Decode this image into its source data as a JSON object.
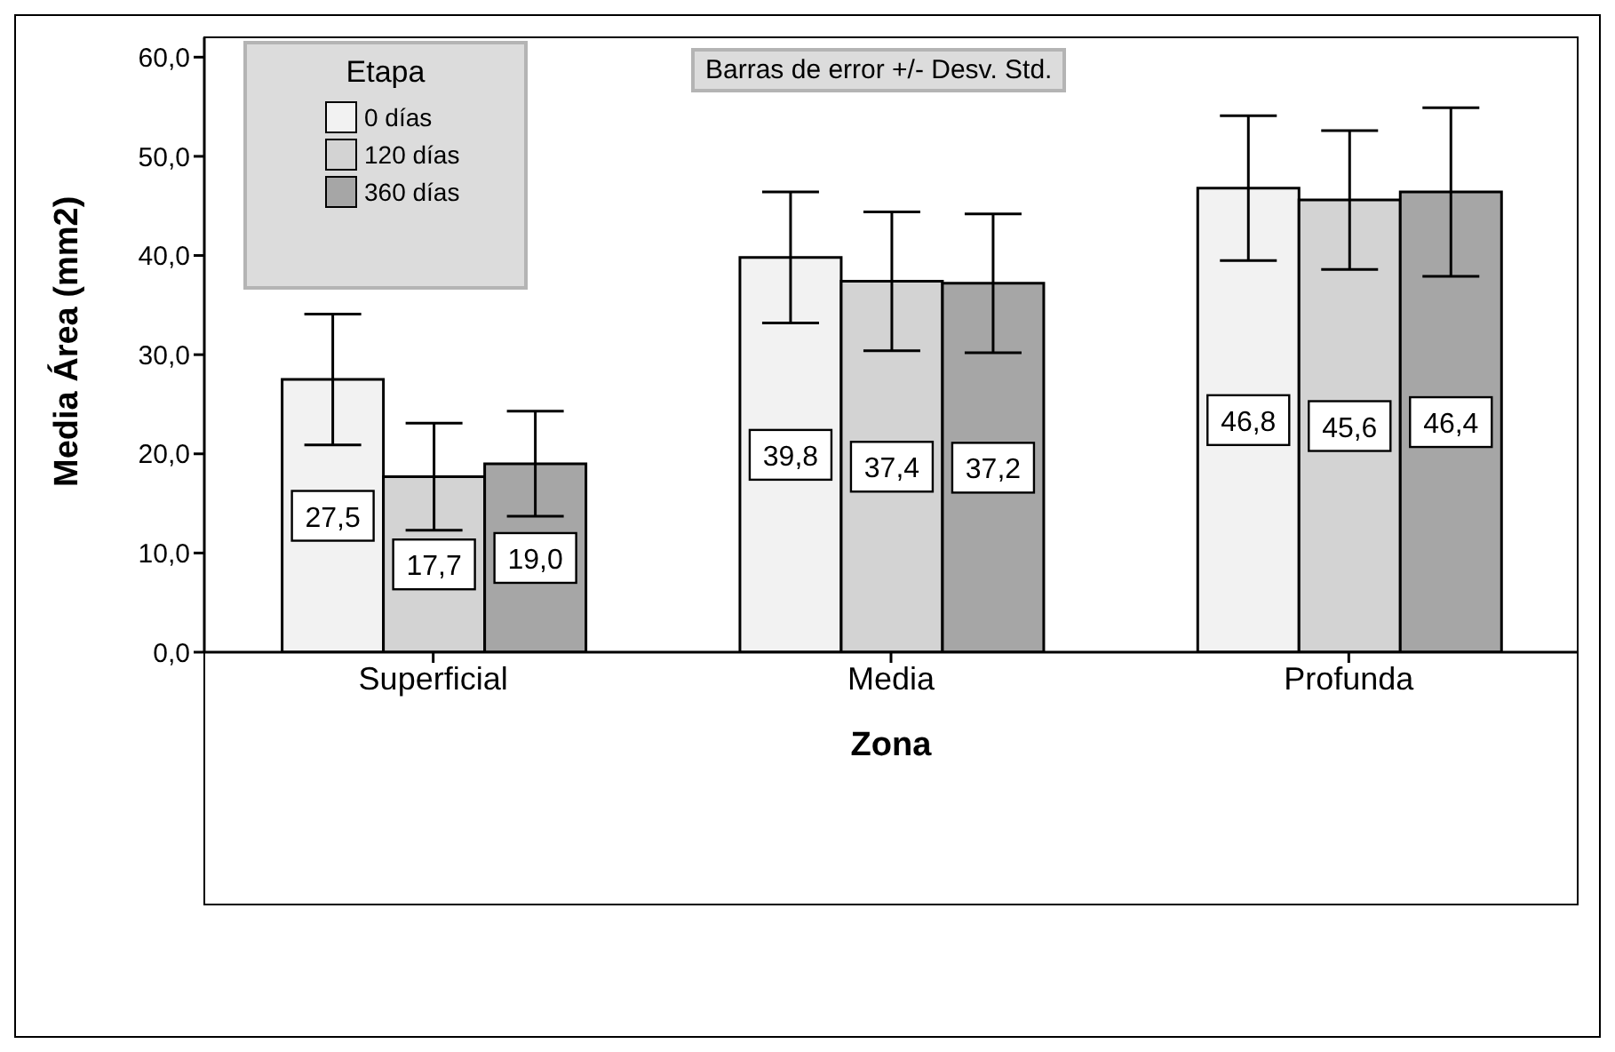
{
  "chart_data": {
    "type": "bar",
    "xlabel": "Zona",
    "ylabel": "Media Área  (mm2)",
    "legend_title": "Etapa",
    "annotations": [
      "Barras de error +/- Desv. Std."
    ],
    "categories": [
      "Superficial",
      "Media",
      "Profunda"
    ],
    "series": [
      {
        "name": "0 días",
        "color": "#f2f2f2",
        "values": [
          27.5,
          39.8,
          46.8
        ],
        "errors": [
          6.6,
          6.6,
          7.3
        ],
        "value_labels": [
          "27,5",
          "39,8",
          "46,8"
        ]
      },
      {
        "name": "120 días",
        "color": "#d3d3d3",
        "values": [
          17.7,
          37.4,
          45.6
        ],
        "errors": [
          5.4,
          7.0,
          7.0
        ],
        "value_labels": [
          "17,7",
          "37,4",
          "45,6"
        ]
      },
      {
        "name": "360 días",
        "color": "#a6a6a6",
        "values": [
          19.0,
          37.2,
          46.4
        ],
        "errors": [
          5.3,
          7.0,
          8.5
        ],
        "value_labels": [
          "19,0",
          "37,2",
          "46,4"
        ]
      }
    ],
    "ylim": [
      0,
      62
    ],
    "yticks": [
      {
        "value": 0,
        "label": "0,0"
      },
      {
        "value": 10,
        "label": "10,0"
      },
      {
        "value": 20,
        "label": "20,0"
      },
      {
        "value": 30,
        "label": "30,0"
      },
      {
        "value": 40,
        "label": "40,0"
      },
      {
        "value": 50,
        "label": "50,0"
      },
      {
        "value": 60,
        "label": "60,0"
      }
    ],
    "grid": false,
    "legend": "top left"
  }
}
